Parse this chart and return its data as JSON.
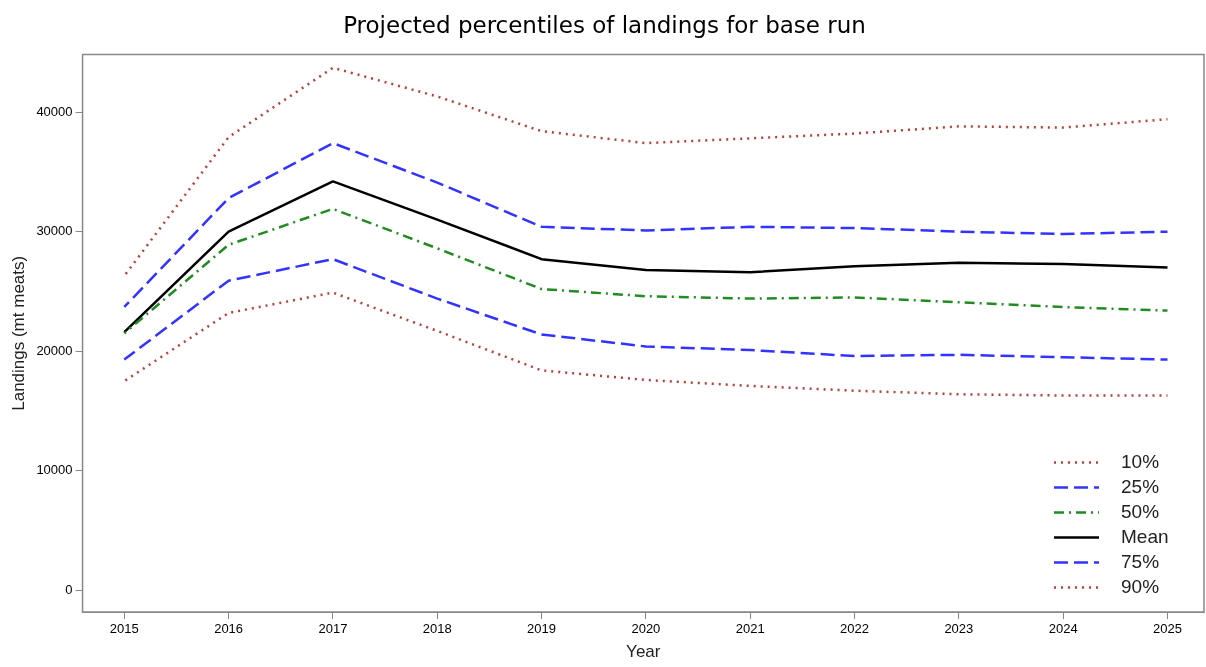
{
  "chart_data": {
    "type": "line",
    "title": "Projected percentiles of landings for base run",
    "xlabel": "Year",
    "ylabel": "Landings (mt meats)",
    "x": [
      2015,
      2016,
      2017,
      2018,
      2019,
      2020,
      2021,
      2022,
      2023,
      2024,
      2025
    ],
    "xlim": [
      2014.6,
      2025.35
    ],
    "xticks": [
      2015,
      2016,
      2017,
      2018,
      2019,
      2020,
      2021,
      2022,
      2023,
      2024,
      2025
    ],
    "ylim": [
      -1800,
      44800
    ],
    "yticks": [
      0,
      10000,
      20000,
      30000,
      40000
    ],
    "grid": false,
    "legend": "bottom right",
    "marker": "none",
    "series": [
      {
        "name": "10%",
        "color": "#b5403a",
        "line_style": "dotted",
        "values": [
          17500,
          23200,
          24900,
          21700,
          18400,
          17600,
          17100,
          16700,
          16400,
          16300,
          16300
        ]
      },
      {
        "name": "25%",
        "color": "#3333ff",
        "line_style": "dashed",
        "values": [
          19300,
          25900,
          27700,
          24400,
          21400,
          20400,
          20100,
          19600,
          19700,
          19500,
          19300
        ]
      },
      {
        "name": "50%",
        "color": "#228b22",
        "line_style": "dashdot",
        "values": [
          21500,
          28900,
          31900,
          28600,
          25200,
          24600,
          24400,
          24500,
          24100,
          23700,
          23400
        ]
      },
      {
        "name": "Mean",
        "color": "#000000",
        "line_style": "solid",
        "values": [
          21600,
          30000,
          34200,
          31000,
          27700,
          26800,
          26600,
          27100,
          27400,
          27300,
          27000
        ]
      },
      {
        "name": "75%",
        "color": "#3333ff",
        "line_style": "dashed",
        "values": [
          23700,
          32800,
          37400,
          34100,
          30400,
          30100,
          30400,
          30300,
          30000,
          29800,
          30000
        ]
      },
      {
        "name": "90%",
        "color": "#b5403a",
        "line_style": "dotted",
        "values": [
          26300,
          37900,
          43700,
          41300,
          38400,
          37400,
          37800,
          38200,
          38800,
          38700,
          39400
        ]
      }
    ]
  }
}
